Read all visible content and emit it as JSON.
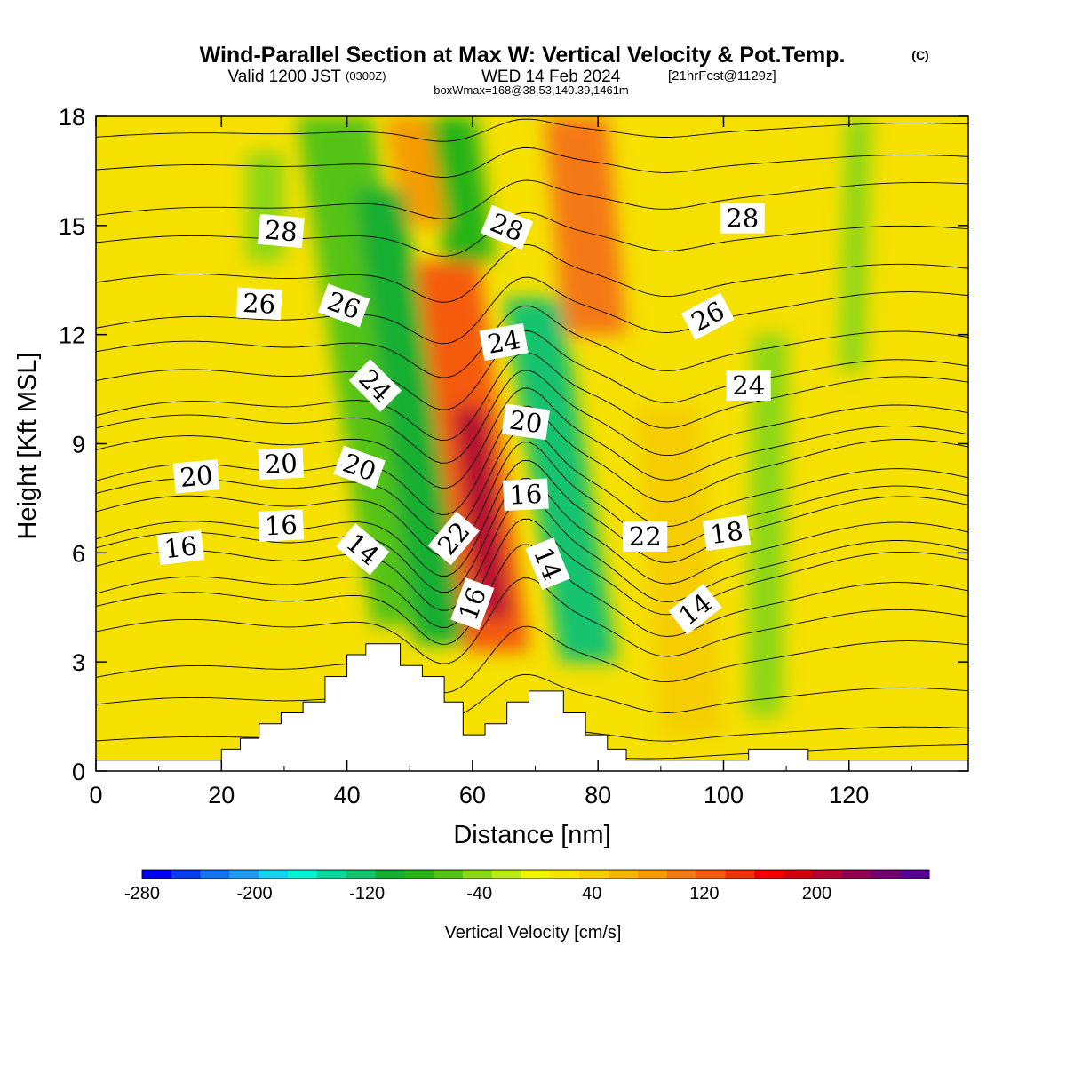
{
  "header": {
    "title": "Wind-Parallel Section at Max W: Vertical Velocity & Pot.Temp.",
    "copyright": "(C)",
    "valid_prefix": "Valid 1200 JST",
    "valid_utc": "(0300Z)",
    "valid_date": "WED 14 Feb 2024",
    "forecast": "[21hrFcst@1129z]",
    "box_info": "boxWmax=168@38.53,140.39,1461m"
  },
  "chart_data": {
    "type": "heatmap",
    "xlabel": "Distance [nm]",
    "ylabel": "Height [Kft MSL]",
    "xlim": [
      0,
      139
    ],
    "ylim": [
      0,
      18
    ],
    "x_ticks": [
      0,
      20,
      40,
      60,
      80,
      100,
      120
    ],
    "y_ticks": [
      0,
      3,
      6,
      9,
      12,
      15,
      18
    ],
    "colorbar": {
      "label": "Vertical Velocity [cm/s]",
      "range": [
        -280,
        280
      ],
      "tick_values": [
        -280,
        -200,
        -120,
        -40,
        40,
        120,
        200
      ],
      "colors": [
        "#0000f0",
        "#0a3cf0",
        "#1473f0",
        "#1e9bf0",
        "#14d2f0",
        "#0af0d2",
        "#0ad79b",
        "#14c36e",
        "#14af32",
        "#28b414",
        "#55c314",
        "#8cd714",
        "#b9eb14",
        "#f0f500",
        "#f5e600",
        "#f5cd00",
        "#f5b400",
        "#f59b00",
        "#f57814",
        "#f55a0f",
        "#f0320a",
        "#f00000",
        "#d2000f",
        "#b40032",
        "#910050",
        "#73006e",
        "#5a0090"
      ]
    },
    "terrain": {
      "x": [
        0,
        20,
        20,
        23,
        23,
        26,
        26,
        29.5,
        29.5,
        33,
        33,
        36.5,
        36.5,
        40,
        40,
        43,
        43,
        48.5,
        48.5,
        52,
        52,
        55.5,
        55.5,
        58.5,
        58.5,
        62,
        62,
        65.5,
        65.5,
        69,
        69,
        74.5,
        74.5,
        78,
        78,
        81.5,
        81.5,
        84.5,
        84.5,
        104,
        104,
        113.5,
        113.5,
        139
      ],
      "y": [
        0.3,
        0.3,
        0.6,
        0.6,
        0.9,
        0.9,
        1.3,
        1.3,
        1.6,
        1.6,
        1.9,
        1.9,
        2.6,
        2.6,
        3.2,
        3.2,
        3.5,
        3.5,
        2.9,
        2.9,
        2.6,
        2.6,
        1.9,
        1.9,
        1.0,
        1.0,
        1.3,
        1.3,
        1.9,
        1.9,
        2.2,
        2.2,
        1.6,
        1.6,
        1.0,
        1.0,
        0.6,
        0.6,
        0.3,
        0.3,
        0.6,
        0.6,
        0.3,
        0.3
      ]
    },
    "velocity_features": [
      {
        "x": 44,
        "y_top": 18,
        "y_bot": 4,
        "half_width": 6,
        "value": -60,
        "tilt": -12
      },
      {
        "x": 50,
        "y_top": 16,
        "y_bot": 3.5,
        "half_width": 4,
        "value": -110,
        "tilt": -10
      },
      {
        "x": 60,
        "y_top": 14,
        "y_bot": 3.3,
        "half_width": 5,
        "value": 130,
        "tilt": -8
      },
      {
        "x": 61.5,
        "y_top": 10,
        "y_bot": 4.2,
        "half_width": 2.5,
        "value": 200,
        "tilt": -4
      },
      {
        "x": 74,
        "y_top": 13,
        "y_bot": 3,
        "half_width": 4.5,
        "value": -130,
        "tilt": -9
      },
      {
        "x": 78,
        "y_top": 18,
        "y_bot": 12,
        "half_width": 5,
        "value": 100,
        "tilt": -3
      },
      {
        "x": 58,
        "y_top": 18,
        "y_bot": 14,
        "half_width": 4,
        "value": -90,
        "tilt": -3
      },
      {
        "x": 51,
        "y_top": 18,
        "y_bot": 15,
        "half_width": 3.5,
        "value": 90,
        "tilt": -3
      },
      {
        "x": 93,
        "y_top": 10,
        "y_bot": 1,
        "half_width": 5,
        "value": 50,
        "tilt": -4
      },
      {
        "x": 107,
        "y_top": 12,
        "y_bot": 1.5,
        "half_width": 2.8,
        "value": -45,
        "tilt": 1
      },
      {
        "x": 121,
        "y_top": 18,
        "y_bot": 11,
        "half_width": 2,
        "value": -40,
        "tilt": 1
      },
      {
        "x": 27,
        "y_top": 17,
        "y_bot": 14,
        "half_width": 3,
        "value": -35,
        "tilt": 0
      }
    ],
    "isentropes": {
      "label": "Pot.Temp.",
      "levels": [
        {
          "base": 0.3,
          "amp": 0.1
        },
        {
          "base": 1.0,
          "amp": 0.3
        },
        {
          "base": 2.0,
          "amp": 0.6
        },
        {
          "base": 3.0,
          "amp": 0.9
        },
        {
          "base": 4.0,
          "amp": 1.2
        },
        {
          "base": 4.7,
          "amp": 1.4
        },
        {
          "base": 5.3,
          "amp": 1.5
        },
        {
          "base": 5.8,
          "amp": 1.6
        },
        {
          "base": 6.3,
          "amp": 1.6
        },
        {
          "base": 6.8,
          "amp": 1.6
        },
        {
          "base": 7.3,
          "amp": 1.6
        },
        {
          "base": 7.8,
          "amp": 1.5
        },
        {
          "base": 8.4,
          "amp": 1.5
        },
        {
          "base": 9.0,
          "amp": 1.4
        },
        {
          "base": 9.6,
          "amp": 1.3
        },
        {
          "base": 10.2,
          "amp": 1.2
        },
        {
          "base": 10.9,
          "amp": 1.1
        },
        {
          "base": 11.7,
          "amp": 1.0
        },
        {
          "base": 12.6,
          "amp": 0.9
        },
        {
          "base": 13.6,
          "amp": 0.8
        },
        {
          "base": 14.7,
          "amp": 0.6
        },
        {
          "base": 15.7,
          "amp": 0.5
        },
        {
          "base": 16.7,
          "amp": 0.4
        },
        {
          "base": 17.6,
          "amp": 0.3
        }
      ],
      "contour_labels": [
        {
          "text": "28",
          "x": 29.5,
          "y": 14.85,
          "angle": 5
        },
        {
          "text": "28",
          "x": 65.5,
          "y": 14.95,
          "angle": 22
        },
        {
          "text": "28",
          "x": 103,
          "y": 15.2,
          "angle": 0
        },
        {
          "text": "26",
          "x": 26,
          "y": 12.85,
          "angle": 3
        },
        {
          "text": "26",
          "x": 39.5,
          "y": 12.8,
          "angle": 20
        },
        {
          "text": "26",
          "x": 97.5,
          "y": 12.5,
          "angle": -28
        },
        {
          "text": "24",
          "x": 65,
          "y": 11.8,
          "angle": -10
        },
        {
          "text": "24",
          "x": 44.5,
          "y": 10.6,
          "angle": 45
        },
        {
          "text": "24",
          "x": 104,
          "y": 10.6,
          "angle": 0
        },
        {
          "text": "20",
          "x": 68.5,
          "y": 9.6,
          "angle": 8
        },
        {
          "text": "20",
          "x": 16,
          "y": 8.1,
          "angle": -5
        },
        {
          "text": "20",
          "x": 29.5,
          "y": 8.45,
          "angle": -3
        },
        {
          "text": "20",
          "x": 42,
          "y": 8.35,
          "angle": 20
        },
        {
          "text": "16",
          "x": 68.5,
          "y": 7.6,
          "angle": -3
        },
        {
          "text": "16",
          "x": 29.5,
          "y": 6.75,
          "angle": -3
        },
        {
          "text": "16",
          "x": 13.5,
          "y": 6.15,
          "angle": -7
        },
        {
          "text": "22",
          "x": 57,
          "y": 6.4,
          "angle": -50
        },
        {
          "text": "22",
          "x": 87.5,
          "y": 6.45,
          "angle": 0
        },
        {
          "text": "18",
          "x": 100.5,
          "y": 6.55,
          "angle": -8
        },
        {
          "text": "14",
          "x": 42.5,
          "y": 6.1,
          "angle": 40
        },
        {
          "text": "14",
          "x": 72,
          "y": 5.7,
          "angle": 68
        },
        {
          "text": "14",
          "x": 95.5,
          "y": 4.45,
          "angle": -38
        },
        {
          "text": "16",
          "x": 60,
          "y": 4.6,
          "angle": -70
        }
      ]
    }
  }
}
